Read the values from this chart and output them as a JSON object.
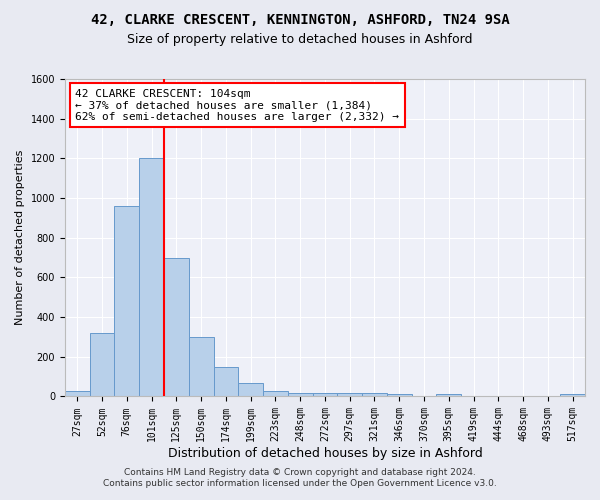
{
  "title": "42, CLARKE CRESCENT, KENNINGTON, ASHFORD, TN24 9SA",
  "subtitle": "Size of property relative to detached houses in Ashford",
  "xlabel": "Distribution of detached houses by size in Ashford",
  "ylabel": "Number of detached properties",
  "footer1": "Contains HM Land Registry data © Crown copyright and database right 2024.",
  "footer2": "Contains public sector information licensed under the Open Government Licence v3.0.",
  "bin_labels": [
    "27sqm",
    "52sqm",
    "76sqm",
    "101sqm",
    "125sqm",
    "150sqm",
    "174sqm",
    "199sqm",
    "223sqm",
    "248sqm",
    "272sqm",
    "297sqm",
    "321sqm",
    "346sqm",
    "370sqm",
    "395sqm",
    "419sqm",
    "444sqm",
    "468sqm",
    "493sqm",
    "517sqm"
  ],
  "bar_values": [
    30,
    320,
    960,
    1200,
    700,
    300,
    150,
    70,
    30,
    20,
    15,
    15,
    15,
    10,
    0,
    10,
    0,
    0,
    0,
    0,
    10
  ],
  "bar_color": "#b8d0ea",
  "bar_edge_color": "#6699cc",
  "vline_x": 3.5,
  "vline_color": "red",
  "annotation_text": "42 CLARKE CRESCENT: 104sqm\n← 37% of detached houses are smaller (1,384)\n62% of semi-detached houses are larger (2,332) →",
  "annotation_box_color": "white",
  "annotation_box_edge_color": "red",
  "ylim": [
    0,
    1600
  ],
  "yticks": [
    0,
    200,
    400,
    600,
    800,
    1000,
    1200,
    1400,
    1600
  ],
  "bg_color": "#e8eaf2",
  "plot_bg_color": "#eef0f8",
  "grid_color": "white",
  "title_fontsize": 10,
  "subtitle_fontsize": 9,
  "annotation_fontsize": 8,
  "ylabel_fontsize": 8,
  "xlabel_fontsize": 9,
  "tick_fontsize": 7,
  "footer_fontsize": 6.5
}
